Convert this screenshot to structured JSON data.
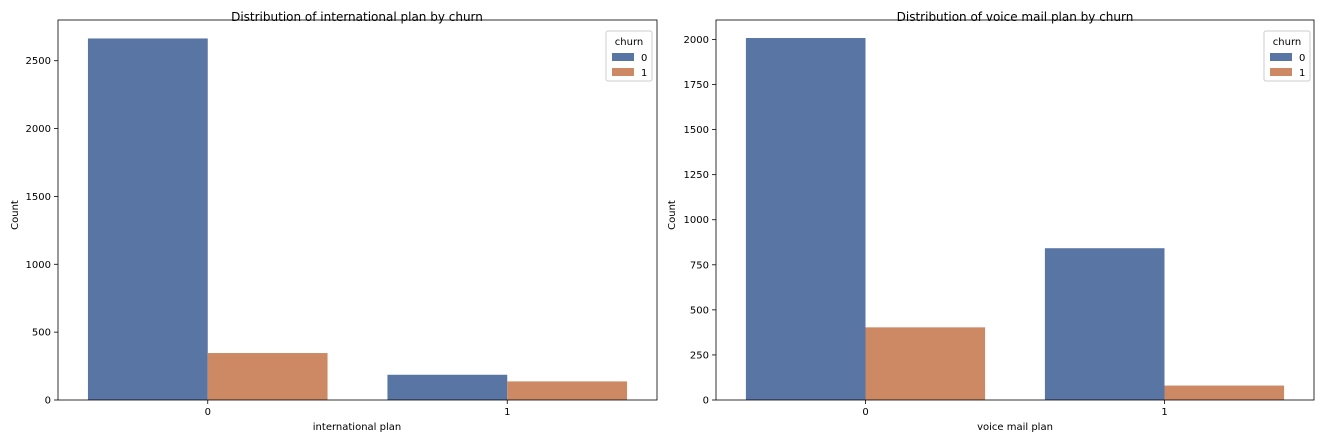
{
  "chart_data": [
    {
      "type": "bar",
      "title": "Distribution of international plan by churn",
      "xlabel": "international plan",
      "ylabel": "Count",
      "categories": [
        "0",
        "1"
      ],
      "series": [
        {
          "name": "0",
          "values": [
            2664,
            186
          ]
        },
        {
          "name": "1",
          "values": [
            346,
            137
          ]
        }
      ],
      "ylim": [
        0,
        2800
      ],
      "yticks": [
        0,
        500,
        1000,
        1500,
        2000,
        2500
      ],
      "legend": {
        "title": "churn",
        "placement": "top-right"
      },
      "colors": [
        "#5975a4",
        "#cc8963"
      ],
      "grid": false
    },
    {
      "type": "bar",
      "title": "Distribution of voice mail plan by churn",
      "xlabel": "voice mail plan",
      "ylabel": "Count",
      "categories": [
        "0",
        "1"
      ],
      "series": [
        {
          "name": "0",
          "values": [
            2008,
            842
          ]
        },
        {
          "name": "1",
          "values": [
            403,
            80
          ]
        }
      ],
      "ylim": [
        0,
        2108
      ],
      "yticks": [
        0,
        250,
        500,
        750,
        1000,
        1250,
        1500,
        1750,
        2000
      ],
      "legend": {
        "title": "churn",
        "placement": "top-right"
      },
      "colors": [
        "#5975a4",
        "#cc8963"
      ],
      "grid": false
    }
  ]
}
